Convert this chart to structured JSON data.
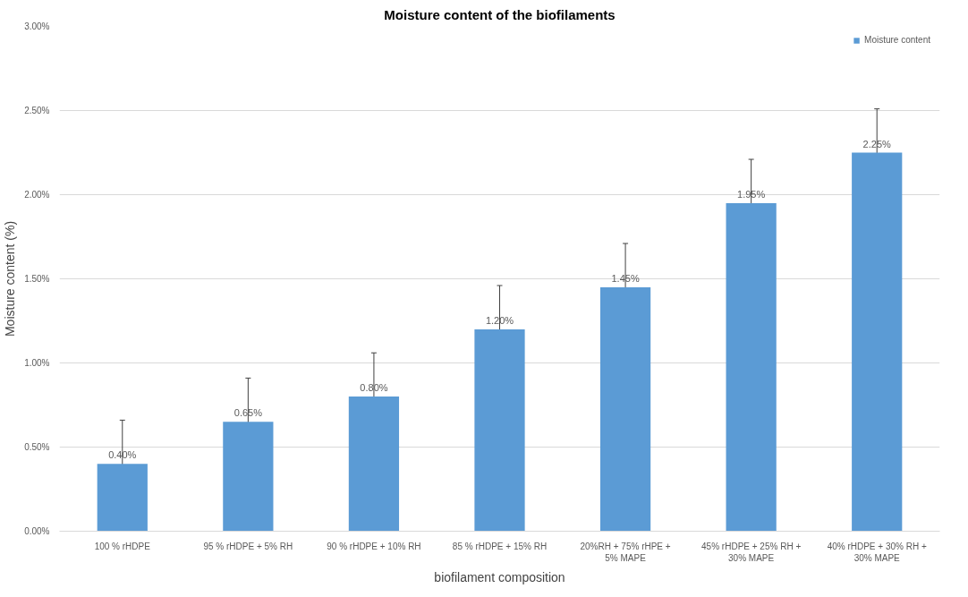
{
  "chart_data": {
    "type": "bar",
    "title": "Moisture content of the biofilaments",
    "xlabel": "biofilament composition",
    "ylabel": "Moisture content (%)",
    "categories": [
      "100 % rHDPE",
      "95 % rHDPE + 5% RH",
      "90 % rHDPE + 10% RH",
      "85 % rHDPE + 15% RH",
      "20%RH + 75% rHPE + 5% MAPE",
      "45% rHDPE + 25% RH + 30% MAPE",
      "40% rHDPE + 30% RH + 30% MAPE"
    ],
    "series": [
      {
        "name": "Moisture content",
        "color": "#5b9bd5",
        "values": [
          0.4,
          0.65,
          0.8,
          1.2,
          1.45,
          1.95,
          2.25
        ],
        "errors": [
          0.26,
          0.26,
          0.26,
          0.26,
          0.26,
          0.26,
          0.26
        ],
        "value_labels": [
          "0.40%",
          "0.65%",
          "0.80%",
          "1.20%",
          "1.45%",
          "1.95%",
          "2.25%"
        ]
      }
    ],
    "ylim": [
      0,
      3
    ],
    "yticks": [
      {
        "value": 0,
        "label": "0.00%"
      },
      {
        "value": 0.5,
        "label": "0.50%"
      },
      {
        "value": 1,
        "label": "1.00%"
      },
      {
        "value": 1.5,
        "label": "1.50%"
      },
      {
        "value": 2,
        "label": "2.00%"
      },
      {
        "value": 2.5,
        "label": "2.50%"
      },
      {
        "value": 3,
        "label": "3.00%"
      }
    ],
    "grid": "y",
    "legend": "top right"
  }
}
